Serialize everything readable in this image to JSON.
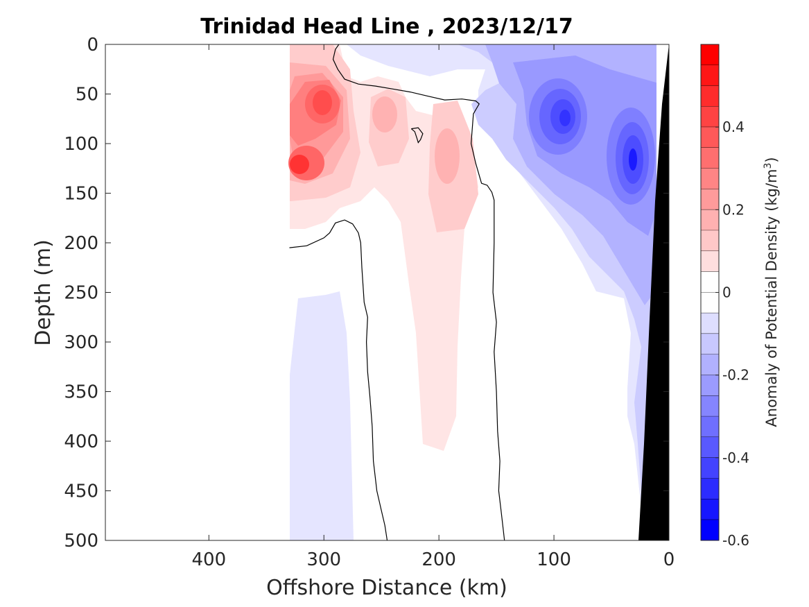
{
  "chart_data": {
    "type": "heatmap",
    "title": "Trinidad Head Line , 2023/12/17",
    "xlabel": "Offshore Distance (km)",
    "ylabel": "Depth (m)",
    "colorbar_label": "Anomaly of Potential Density (kg/m",
    "colorbar_label_sup": "3",
    "colorbar_label_close": ")",
    "x_axis": {
      "range": [
        490,
        0
      ],
      "reversed": true,
      "ticks": [
        400,
        300,
        200,
        100,
        0
      ],
      "tick_labels": [
        "400",
        "300",
        "200",
        "100",
        "0"
      ]
    },
    "y_axis": {
      "range": [
        0,
        500
      ],
      "reversed": true,
      "ticks": [
        0,
        50,
        100,
        150,
        200,
        250,
        300,
        350,
        400,
        450,
        500
      ],
      "tick_labels": [
        "0",
        "50",
        "100",
        "150",
        "200",
        "250",
        "300",
        "350",
        "400",
        "450",
        "500"
      ]
    },
    "colorbar": {
      "range": [
        -0.6,
        0.6
      ],
      "ticks": [
        0.4,
        0.2,
        0,
        -0.2,
        -0.4,
        -0.6
      ],
      "tick_labels": [
        "0.4",
        "0.2",
        "0",
        "-0.2",
        "-0.4",
        "-0.6"
      ]
    },
    "colors": {
      "positive": "#ff0000",
      "negative": "#0000ff",
      "zero": "#ffffff",
      "bathymetry": "#000000"
    },
    "data_extent_km": [
      330,
      10
    ],
    "zero_contour_segments": [
      [
        [
          330,
          205
        ],
        [
          315,
          203
        ],
        [
          300,
          195
        ],
        [
          295,
          190
        ],
        [
          290,
          180
        ],
        [
          282,
          177
        ],
        [
          275,
          181
        ],
        [
          270,
          190
        ],
        [
          268,
          200
        ],
        [
          267,
          225
        ],
        [
          265,
          260
        ],
        [
          262,
          275
        ],
        [
          263,
          300
        ],
        [
          262,
          330
        ],
        [
          260,
          355
        ],
        [
          258,
          385
        ],
        [
          257,
          420
        ],
        [
          254,
          450
        ],
        [
          250,
          470
        ],
        [
          247,
          485
        ],
        [
          245,
          500
        ]
      ],
      [
        [
          287,
          0
        ],
        [
          290,
          5
        ],
        [
          292,
          15
        ],
        [
          288,
          25
        ],
        [
          282,
          35
        ],
        [
          270,
          40
        ],
        [
          255,
          42
        ],
        [
          240,
          45
        ],
        [
          225,
          48
        ],
        [
          210,
          52
        ],
        [
          195,
          56
        ],
        [
          180,
          55
        ],
        [
          168,
          57
        ],
        [
          165,
          60
        ],
        [
          170,
          70
        ],
        [
          172,
          100
        ],
        [
          168,
          120
        ],
        [
          163,
          140
        ],
        [
          158,
          142
        ],
        [
          154,
          149
        ],
        [
          152,
          157
        ],
        [
          152,
          200
        ],
        [
          153,
          250
        ],
        [
          150,
          280
        ],
        [
          152,
          310
        ],
        [
          150,
          350
        ],
        [
          149,
          390
        ],
        [
          147,
          420
        ],
        [
          148,
          450
        ],
        [
          146,
          470
        ],
        [
          144,
          490
        ],
        [
          143,
          500
        ]
      ],
      [
        [
          224,
          85
        ],
        [
          221,
          88
        ],
        [
          219,
          95
        ],
        [
          218,
          99
        ],
        [
          216,
          96
        ],
        [
          214,
          90
        ],
        [
          218,
          84
        ],
        [
          224,
          85
        ]
      ]
    ],
    "features": [
      {
        "kind": "positive-anomaly",
        "center_km": 300,
        "center_depth_m": 60,
        "peak": 0.45
      },
      {
        "kind": "positive-anomaly",
        "center_km": 325,
        "center_depth_m": 120,
        "peak": 0.5
      },
      {
        "kind": "positive-anomaly",
        "center_km": 250,
        "center_depth_m": 70,
        "peak": 0.15
      },
      {
        "kind": "positive-anomaly",
        "center_km": 190,
        "center_depth_m": 115,
        "peak": 0.17
      },
      {
        "kind": "positive-anomaly",
        "center_km": 200,
        "center_depth_m": 280,
        "peak": 0.08
      },
      {
        "kind": "negative-anomaly",
        "center_km": 90,
        "center_depth_m": 75,
        "peak": -0.5
      },
      {
        "kind": "negative-anomaly",
        "center_km": 30,
        "center_depth_m": 115,
        "peak": -0.55
      },
      {
        "kind": "negative-anomaly",
        "center_km": 90,
        "center_depth_m": 20,
        "peak": -0.25
      },
      {
        "kind": "negative-anomaly",
        "center_km": 300,
        "center_depth_m": 400,
        "peak": -0.08
      }
    ]
  }
}
